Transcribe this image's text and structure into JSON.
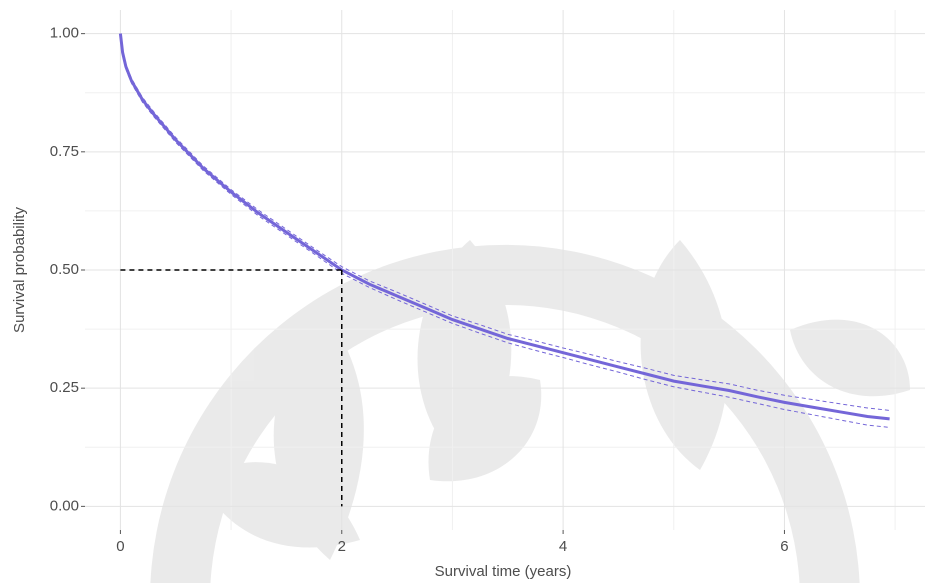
{
  "chart_data": {
    "type": "survival",
    "x_label": "Survival time (years)",
    "y_label": "Survival probability",
    "x": [
      0,
      0.02,
      0.05,
      0.1,
      0.2,
      0.3,
      0.5,
      0.75,
      1,
      1.25,
      1.5,
      1.75,
      2,
      2.25,
      2.5,
      2.75,
      3,
      3.25,
      3.5,
      3.75,
      4,
      4.25,
      4.5,
      4.75,
      5,
      5.25,
      5.5,
      5.75,
      6,
      6.25,
      6.5,
      6.75,
      6.95
    ],
    "values": [
      1.0,
      0.96,
      0.93,
      0.9,
      0.86,
      0.83,
      0.775,
      0.715,
      0.665,
      0.62,
      0.58,
      0.54,
      0.5,
      0.47,
      0.445,
      0.42,
      0.395,
      0.375,
      0.355,
      0.34,
      0.325,
      0.31,
      0.295,
      0.28,
      0.265,
      0.255,
      0.245,
      0.232,
      0.22,
      0.21,
      0.2,
      0.19,
      0.185
    ],
    "lower": [
      1.0,
      0.955,
      0.925,
      0.895,
      0.855,
      0.825,
      0.77,
      0.71,
      0.66,
      0.614,
      0.574,
      0.534,
      0.493,
      0.463,
      0.437,
      0.412,
      0.387,
      0.366,
      0.346,
      0.33,
      0.315,
      0.299,
      0.284,
      0.268,
      0.253,
      0.242,
      0.231,
      0.218,
      0.205,
      0.194,
      0.183,
      0.172,
      0.167
    ],
    "upper": [
      1.0,
      0.965,
      0.935,
      0.905,
      0.865,
      0.835,
      0.78,
      0.72,
      0.67,
      0.626,
      0.586,
      0.546,
      0.507,
      0.477,
      0.453,
      0.428,
      0.403,
      0.384,
      0.364,
      0.35,
      0.335,
      0.321,
      0.306,
      0.292,
      0.277,
      0.268,
      0.259,
      0.246,
      0.235,
      0.226,
      0.217,
      0.208,
      0.203
    ],
    "color": "#7466d8",
    "reference_lines": [
      {
        "x": [
          0,
          2
        ],
        "y": [
          0.5,
          0.5
        ]
      },
      {
        "x": [
          2,
          2
        ],
        "y": [
          0.5,
          0
        ]
      }
    ],
    "xlim": [
      -0.32,
      7.27
    ],
    "ylim": [
      -0.05,
      1.05
    ],
    "xticks": [
      0,
      2,
      4,
      6
    ],
    "yticks": [
      {
        "value": 0,
        "label": "0.00"
      },
      0.25,
      {
        "value": 0.5,
        "label": "0.50"
      },
      0.75,
      {
        "value": 1,
        "label": "1.00"
      }
    ],
    "minor_xticks": [
      1,
      3,
      5,
      7
    ],
    "minor_yticks": [
      0.125,
      0.375,
      0.625,
      0.875
    ],
    "grid": true
  }
}
